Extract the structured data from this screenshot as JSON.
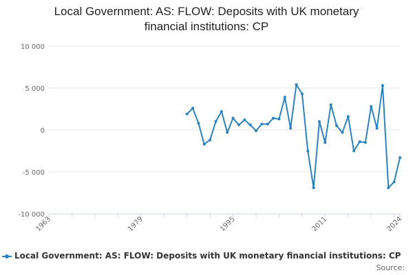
{
  "title_line1": "Local Government: AS: FLOW: Deposits with UK monetary",
  "title_line2": "financial institutions: CP",
  "source_label": "Source:",
  "colors": {
    "series": "#2a83c0",
    "grid": "#e6e6e6",
    "axis": "#ccd6eb"
  },
  "chart_data": {
    "type": "line",
    "title": "Local Government: AS: FLOW: Deposits with UK monetary financial institutions: CP",
    "xlabel": "",
    "ylabel": "",
    "xlim": [
      1963,
      2024
    ],
    "ylim": [
      -10000,
      10000
    ],
    "grid": true,
    "legend_position": "bottom",
    "y_ticks": [
      10000,
      5000,
      0,
      -5000,
      -10000
    ],
    "y_tick_labels": [
      "10 000",
      "5 000",
      "0",
      "-5 000",
      "-10 000"
    ],
    "x_ticks": [
      1963,
      1979,
      1995,
      2011,
      2024
    ],
    "series": [
      {
        "name": "Local Government: AS: FLOW: Deposits with UK monetary financial institutions: CP",
        "x": [
          1987,
          1988,
          1989,
          1990,
          1991,
          1992,
          1993,
          1994,
          1995,
          1996,
          1997,
          1998,
          1999,
          2000,
          2001,
          2002,
          2003,
          2004,
          2005,
          2006,
          2007,
          2008,
          2009,
          2010,
          2011,
          2012,
          2013,
          2014,
          2015,
          2016,
          2017,
          2018,
          2019,
          2020,
          2021,
          2022,
          2023,
          2024
        ],
        "values": [
          1900,
          2600,
          800,
          -1700,
          -1200,
          1000,
          2200,
          -300,
          1400,
          600,
          1200,
          600,
          -100,
          700,
          700,
          1400,
          1300,
          3900,
          200,
          5400,
          4300,
          -2500,
          -6900,
          1000,
          -1500,
          3000,
          500,
          -300,
          1600,
          -2500,
          -1400,
          -1500,
          2800,
          200,
          5300,
          -6900,
          -6200,
          -3300
        ]
      }
    ]
  }
}
